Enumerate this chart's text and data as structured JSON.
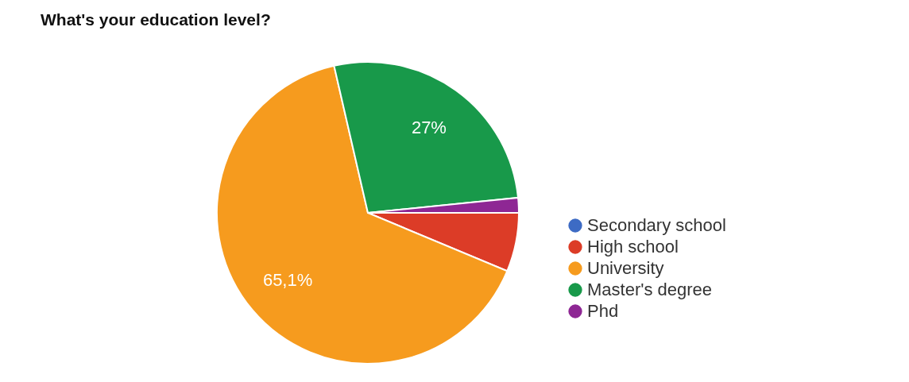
{
  "chart_data": {
    "type": "pie",
    "title": "What's your education level?",
    "categories": [
      "Secondary school",
      "High school",
      "University",
      "Master's degree",
      "Phd"
    ],
    "values": [
      0,
      6.3,
      65.1,
      27,
      1.6
    ],
    "colors": [
      "#3d6bc4",
      "#dc3c27",
      "#f69b1e",
      "#18994a",
      "#8e2794"
    ],
    "value_labels": [
      null,
      null,
      "65,1%",
      "27%",
      null
    ],
    "legend": "right"
  }
}
